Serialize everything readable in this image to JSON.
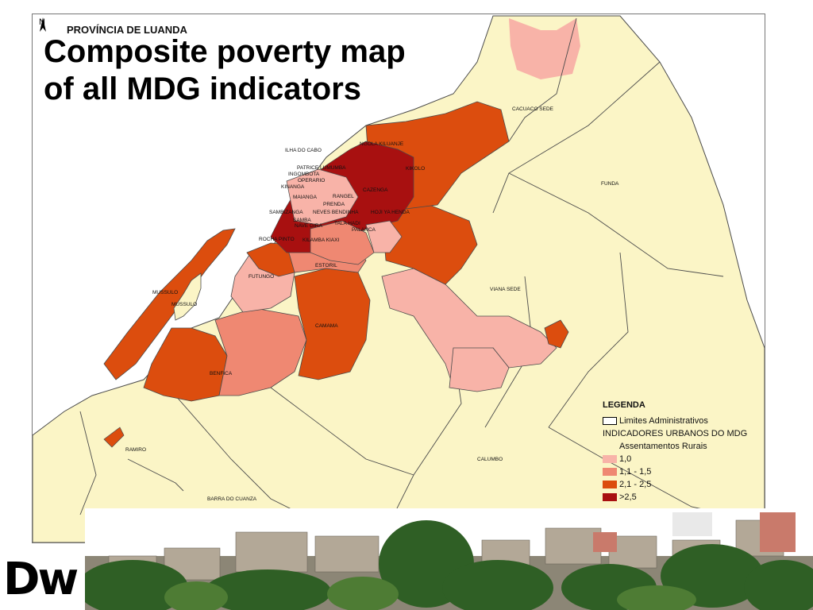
{
  "slide": {
    "title_line1": "Composite poverty map",
    "title_line2": "of all MDG indicators",
    "logo_text": "Dw"
  },
  "map": {
    "north_label": "N",
    "title": "PROVÍNCIA DE LUANDA",
    "place_labels": {
      "cacuaco_sede": "CACUACO SEDE",
      "funda": "FUNDA",
      "ngola_kiluanje": "NGOLA KILUANJE",
      "ilha_do_cabo": "ILHA DO CABO",
      "kikolo": "KIKOLO",
      "cazenga": "CAZENGA",
      "patrice_lumumba": "PATRICE LUMUMBA",
      "ingombota": "INGOMBOTA",
      "operario": "OPERARIO",
      "kinanga": "KINANGA",
      "maianga": "MAIANGA",
      "sambizanga": "SAMBIZANGA",
      "rangel": "RANGEL",
      "samba": "SAMBA",
      "neves_bendinha": "NEVES BENDINHA",
      "prenda": "PRENDA",
      "nave_gira": "NAVE GIRA",
      "palanca": "PALANCA",
      "tala_hadi": "TALA HADI",
      "hoji_ya_henda": "HOJI YA HENDA",
      "kilamba_kiaxi": "KILAMBA KIAXI",
      "rocha_pinto": "ROCHA PINTO",
      "estoril": "ESTORIL",
      "futungo": "FUTUNGO",
      "mussulo_1": "MUSSULO",
      "mussulo_2": "MUSSULO",
      "viana_sede": "VIANA SEDE",
      "camama": "CAMAMA",
      "benfica": "BENFICA",
      "ramiro": "RAMIRO",
      "calumbo": "CALUMBO",
      "barra_do_cuanza": "BARRA DO CUANZA"
    },
    "colors": {
      "rural": "#fbf5c6",
      "c1": "#f8b3a8",
      "c2": "#ef8872",
      "c3": "#dc4d0e",
      "c4": "#a81010",
      "boundary": "#4b4b4b"
    }
  },
  "legend": {
    "title": "LEGENDA",
    "admin_limits": "Limites Administrativos",
    "subtitle": "INDICADORES URBANOS DO MDG",
    "items": [
      {
        "label": "Assentamentos Rurais",
        "color": "#fbf5c6"
      },
      {
        "label": "1,0",
        "color": "#f8b3a8"
      },
      {
        "label": "1,1 - 1,5",
        "color": "#ef8872"
      },
      {
        "label": "2,1 - 2,5",
        "color": "#dc4d0e"
      },
      {
        "label": ">2,5",
        "color": "#a81010"
      }
    ]
  }
}
